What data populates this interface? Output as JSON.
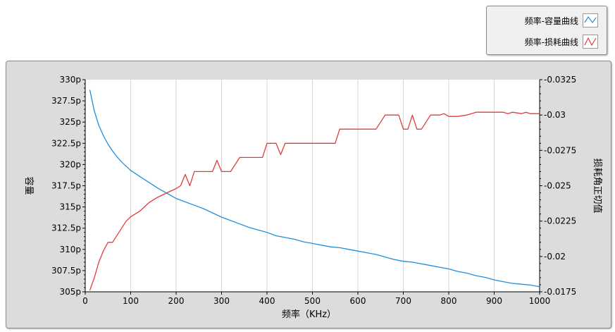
{
  "legend": {
    "items": [
      {
        "label": "频率-容量曲线",
        "color": "#1f8fdc"
      },
      {
        "label": "频率-损耗曲线",
        "color": "#e03c3c"
      }
    ]
  },
  "chart_data": {
    "type": "line",
    "xlabel": "频率（KHz）",
    "ylabel_left": "容量",
    "ylabel_right": "损耗角正切值",
    "xlim": [
      0,
      1000
    ],
    "ylim_left": [
      305,
      330
    ],
    "ylim_right": [
      -0.0175,
      -0.0325
    ],
    "x_ticks": [
      "0",
      "100",
      "200",
      "300",
      "400",
      "500",
      "600",
      "700",
      "800",
      "900",
      "1000"
    ],
    "y_left_ticks": [
      "305p",
      "307.5p",
      "310p",
      "312.5p",
      "315p",
      "317.5p",
      "320p",
      "322.5p",
      "325p",
      "327.5p",
      "330p"
    ],
    "y_right_ticks": [
      "-0.0175",
      "-0.02",
      "-0.0225",
      "-0.025",
      "-0.0275",
      "-0.03",
      "-0.0325"
    ],
    "grid": "vertical",
    "series": [
      {
        "name": "频率-容量曲线",
        "axis": "left",
        "color": "#1f8fdc",
        "x": [
          10,
          20,
          30,
          40,
          50,
          60,
          70,
          80,
          90,
          100,
          120,
          140,
          160,
          180,
          200,
          220,
          240,
          260,
          280,
          300,
          320,
          340,
          360,
          380,
          400,
          420,
          440,
          460,
          480,
          500,
          520,
          540,
          560,
          580,
          600,
          620,
          640,
          660,
          680,
          700,
          720,
          740,
          760,
          780,
          800,
          820,
          840,
          860,
          880,
          900,
          920,
          940,
          960,
          980,
          1000
        ],
        "values": [
          328.8,
          326.3,
          324.6,
          323.4,
          322.4,
          321.6,
          320.9,
          320.3,
          319.8,
          319.3,
          318.6,
          317.9,
          317.2,
          316.6,
          316.0,
          315.6,
          315.2,
          314.8,
          314.3,
          313.8,
          313.4,
          313.0,
          312.6,
          312.3,
          312.0,
          311.6,
          311.4,
          311.2,
          310.9,
          310.7,
          310.5,
          310.3,
          310.2,
          310.0,
          309.8,
          309.6,
          309.4,
          309.1,
          308.8,
          308.6,
          308.5,
          308.3,
          308.1,
          307.9,
          307.7,
          307.4,
          307.2,
          306.9,
          306.7,
          306.4,
          306.2,
          306.0,
          305.9,
          305.8,
          305.6
        ]
      },
      {
        "name": "频率-损耗曲线",
        "axis": "right",
        "color": "#e03c3c",
        "x": [
          10,
          20,
          30,
          40,
          50,
          60,
          70,
          80,
          90,
          100,
          120,
          140,
          160,
          180,
          200,
          210,
          220,
          230,
          240,
          260,
          280,
          290,
          300,
          320,
          340,
          360,
          380,
          390,
          400,
          420,
          430,
          440,
          460,
          480,
          500,
          520,
          540,
          550,
          560,
          580,
          600,
          620,
          640,
          660,
          680,
          690,
          700,
          710,
          720,
          730,
          740,
          760,
          780,
          790,
          800,
          820,
          840,
          860,
          880,
          900,
          920,
          930,
          940,
          960,
          970,
          980,
          1000
        ],
        "values": [
          -0.0176,
          -0.0185,
          -0.0196,
          -0.0204,
          -0.021,
          -0.021,
          -0.0215,
          -0.022,
          -0.0225,
          -0.0228,
          -0.0232,
          -0.0238,
          -0.0242,
          -0.0245,
          -0.0248,
          -0.025,
          -0.0258,
          -0.025,
          -0.026,
          -0.026,
          -0.026,
          -0.0268,
          -0.026,
          -0.026,
          -0.027,
          -0.027,
          -0.027,
          -0.027,
          -0.028,
          -0.028,
          -0.0272,
          -0.028,
          -0.028,
          -0.028,
          -0.028,
          -0.028,
          -0.028,
          -0.028,
          -0.029,
          -0.029,
          -0.029,
          -0.029,
          -0.029,
          -0.03,
          -0.03,
          -0.03,
          -0.029,
          -0.029,
          -0.03,
          -0.029,
          -0.029,
          -0.03,
          -0.03,
          -0.0301,
          -0.0299,
          -0.0299,
          -0.03,
          -0.0302,
          -0.0302,
          -0.0302,
          -0.0302,
          -0.0301,
          -0.0302,
          -0.0301,
          -0.0302,
          -0.0301,
          -0.0301
        ]
      }
    ]
  }
}
